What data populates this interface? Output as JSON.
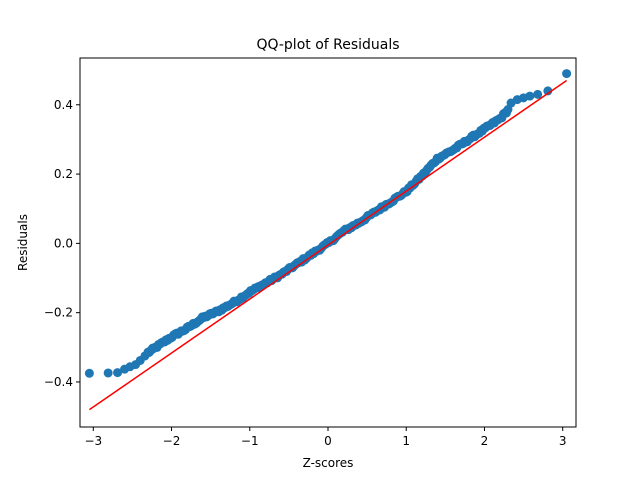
{
  "chart_data": {
    "type": "scatter",
    "title": "QQ-plot of Residuals",
    "xlabel": "Z-scores",
    "ylabel": "Residuals",
    "xlim": [
      -3.17,
      3.17
    ],
    "ylim": [
      -0.53,
      0.535
    ],
    "x_ticks": [
      -3,
      -2,
      -1,
      0,
      1,
      2,
      3
    ],
    "x_tick_labels": [
      "−3",
      "−2",
      "−1",
      "0",
      "1",
      "2",
      "3"
    ],
    "y_ticks": [
      -0.4,
      -0.2,
      0.0,
      0.2,
      0.4
    ],
    "y_tick_labels": [
      "−0.4",
      "−0.2",
      "0.0",
      "0.2",
      "0.4"
    ],
    "grid": false,
    "legend": "none",
    "colors": {
      "points": "#1f77b4",
      "line": "#ff0000"
    },
    "reference_line": {
      "x": [
        -3.05,
        3.05
      ],
      "y": [
        -0.48,
        0.47
      ]
    },
    "tail_points": {
      "x": [
        -3.05,
        -2.81,
        -2.69,
        -2.6,
        -2.53,
        -2.46,
        -2.4,
        -2.34,
        -2.29,
        -2.24,
        2.34,
        2.42,
        2.5,
        2.58,
        2.68,
        2.81,
        3.05
      ],
      "y": [
        -0.375,
        -0.374,
        -0.373,
        -0.363,
        -0.356,
        -0.35,
        -0.338,
        -0.325,
        -0.315,
        -0.305,
        0.405,
        0.415,
        0.42,
        0.425,
        0.43,
        0.44,
        0.49
      ]
    },
    "body_curve": {
      "x": [
        -2.3,
        -2.0,
        -1.8,
        -1.6,
        -1.4,
        -1.2,
        -1.0,
        -0.8,
        -0.6,
        -0.4,
        -0.2,
        0.0,
        0.2,
        0.4,
        0.6,
        0.8,
        1.0,
        1.2,
        1.4,
        1.6,
        1.8,
        2.0,
        2.2,
        2.3
      ],
      "y": [
        -0.315,
        -0.27,
        -0.245,
        -0.215,
        -0.195,
        -0.17,
        -0.14,
        -0.115,
        -0.09,
        -0.06,
        -0.03,
        0.0,
        0.035,
        0.06,
        0.09,
        0.12,
        0.15,
        0.195,
        0.245,
        0.27,
        0.3,
        0.33,
        0.36,
        0.385
      ]
    }
  }
}
